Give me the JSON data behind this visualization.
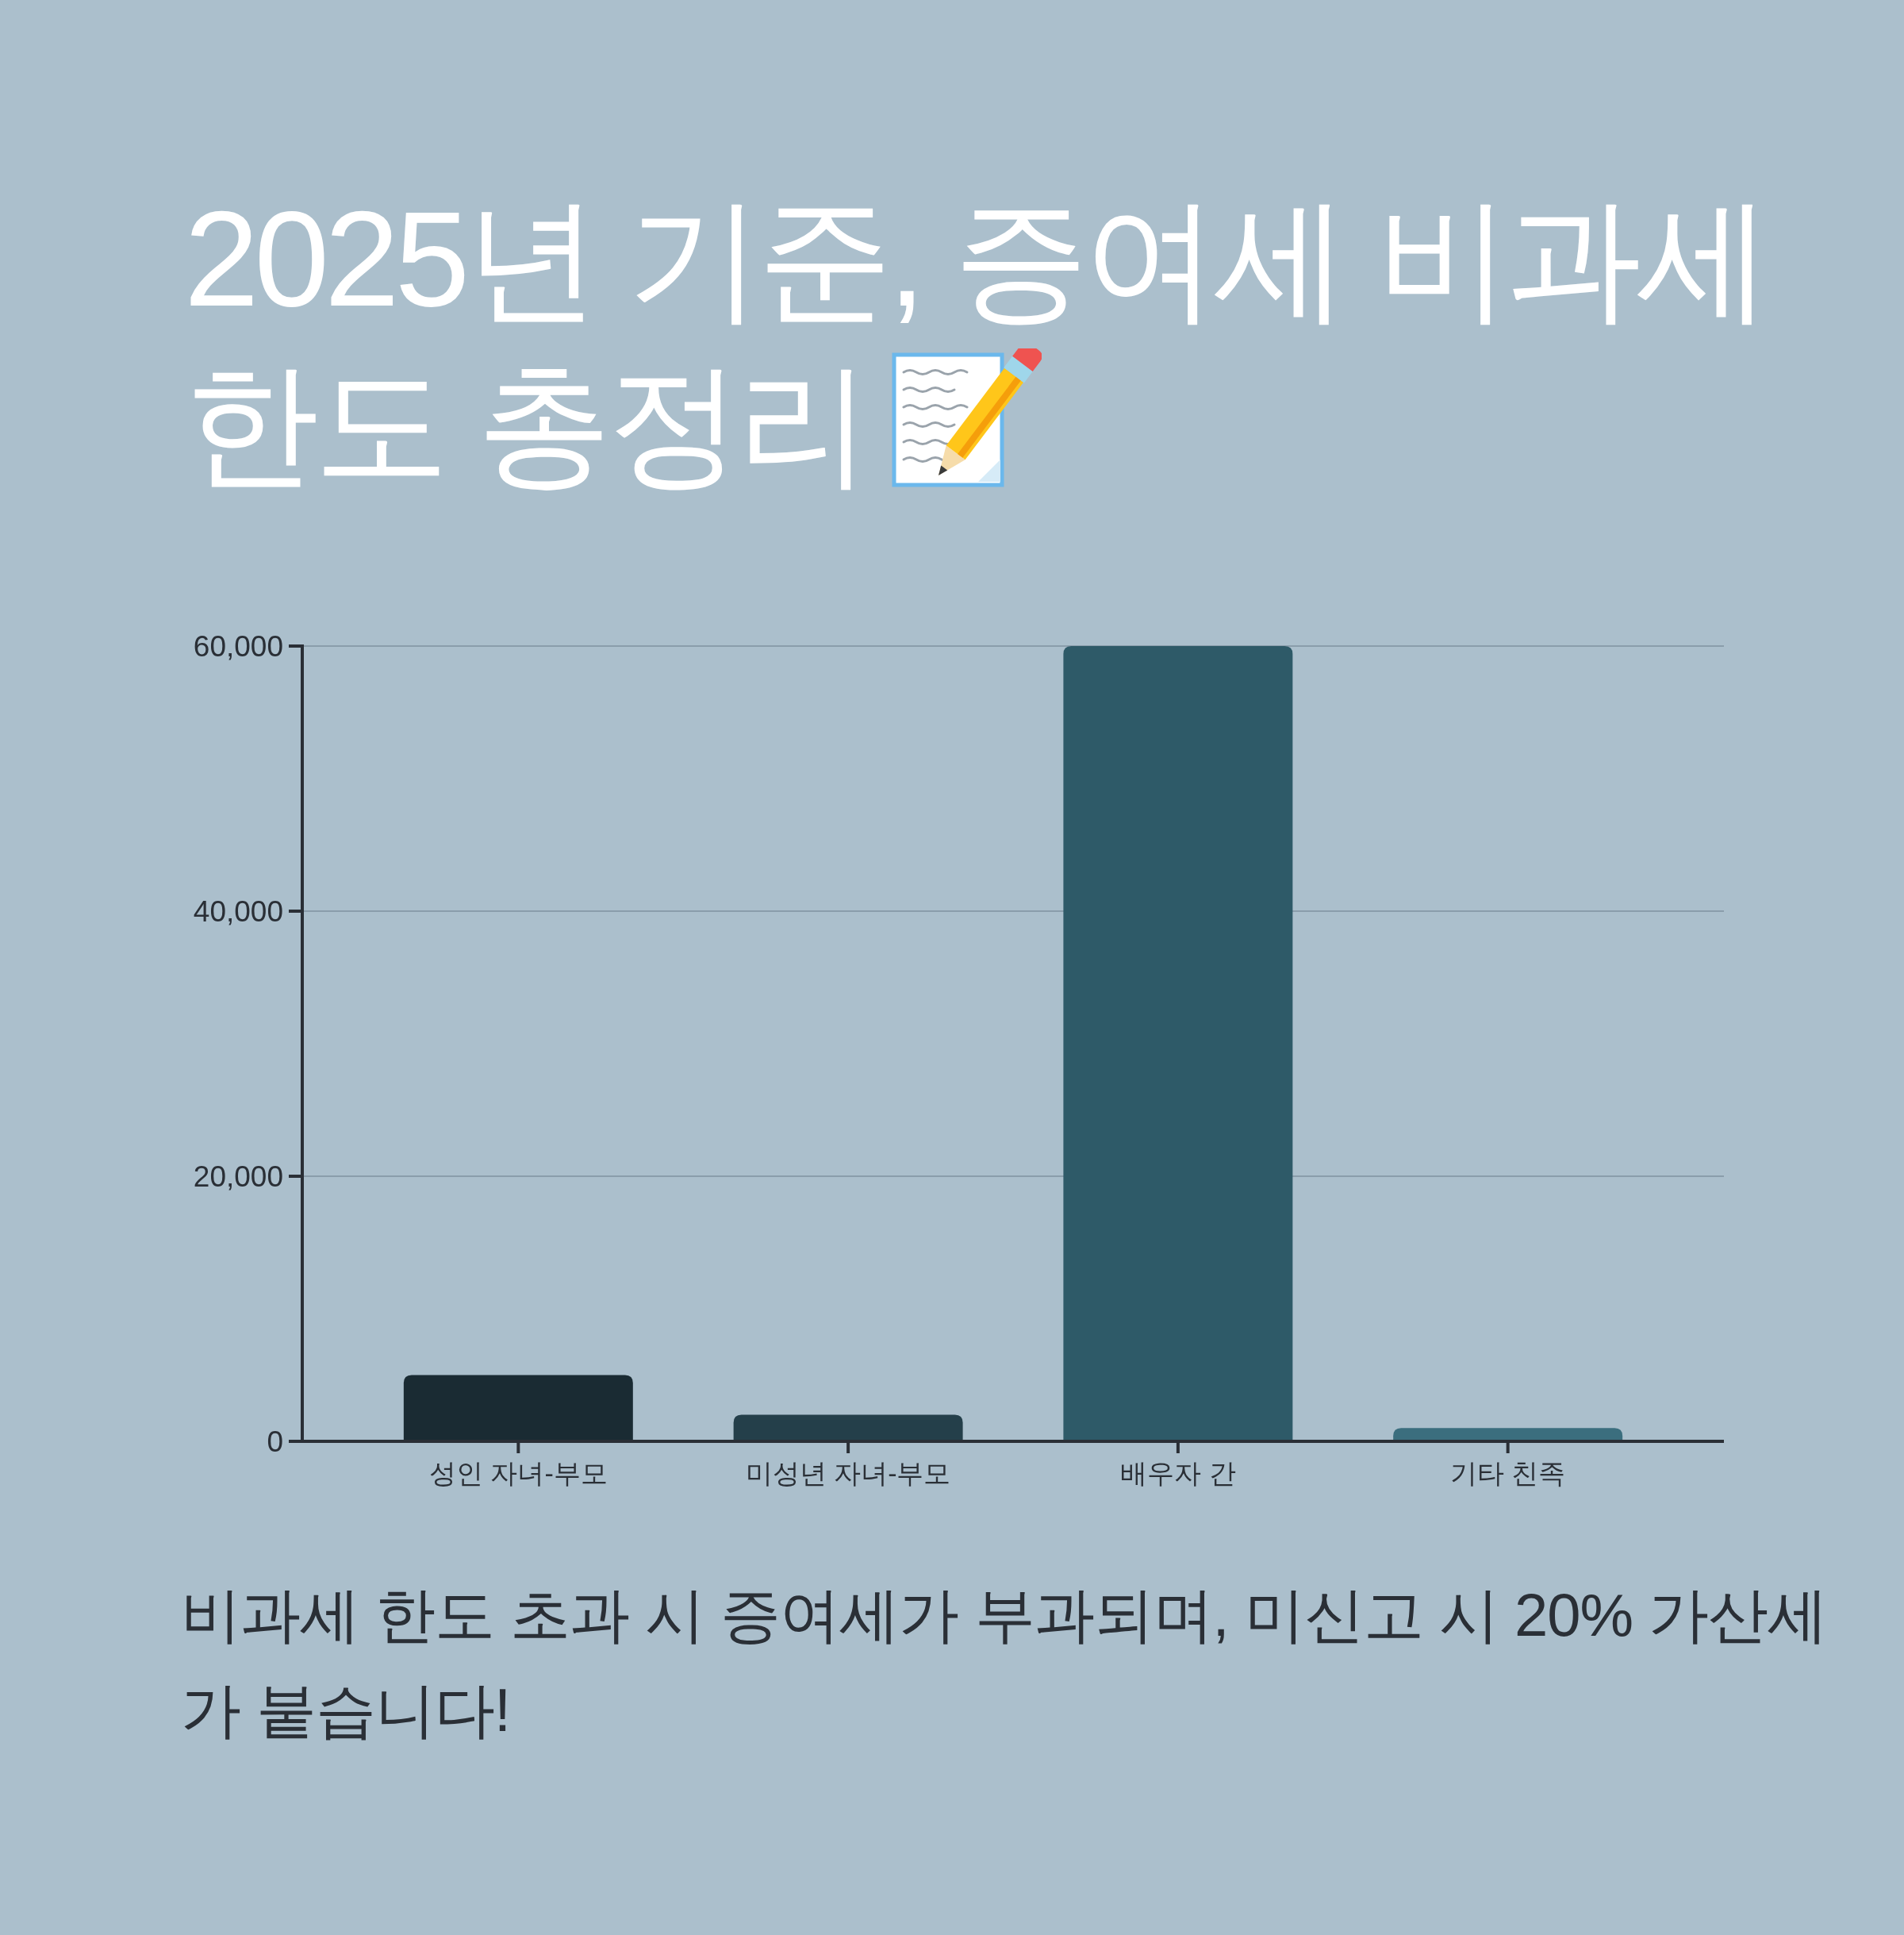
{
  "chart_data": {
    "type": "bar",
    "title": "2025년 기준, 증여세 비과세 한도 총정리",
    "categories": [
      "성인 자녀-부모",
      "미성년 자녀-부모",
      "배우자 간",
      "기타 친족"
    ],
    "values": [
      5000,
      2000,
      60000,
      1000
    ],
    "colors": [
      "#1a2b33",
      "#243f4a",
      "#2e5a68",
      "#3b6e7e"
    ],
    "ylim": [
      0,
      60000
    ],
    "yticks": [
      0,
      {
        "value": 20000,
        "label": "20,000"
      },
      {
        "value": 40000,
        "label": "40,000"
      },
      {
        "value": 60000,
        "label": "60,000"
      }
    ],
    "grid": "y",
    "annotations": [
      "비과세 한도 초과 시 증여세가 부과되며, 미신고 시 20% 가산세가 붙습니다!"
    ]
  }
}
